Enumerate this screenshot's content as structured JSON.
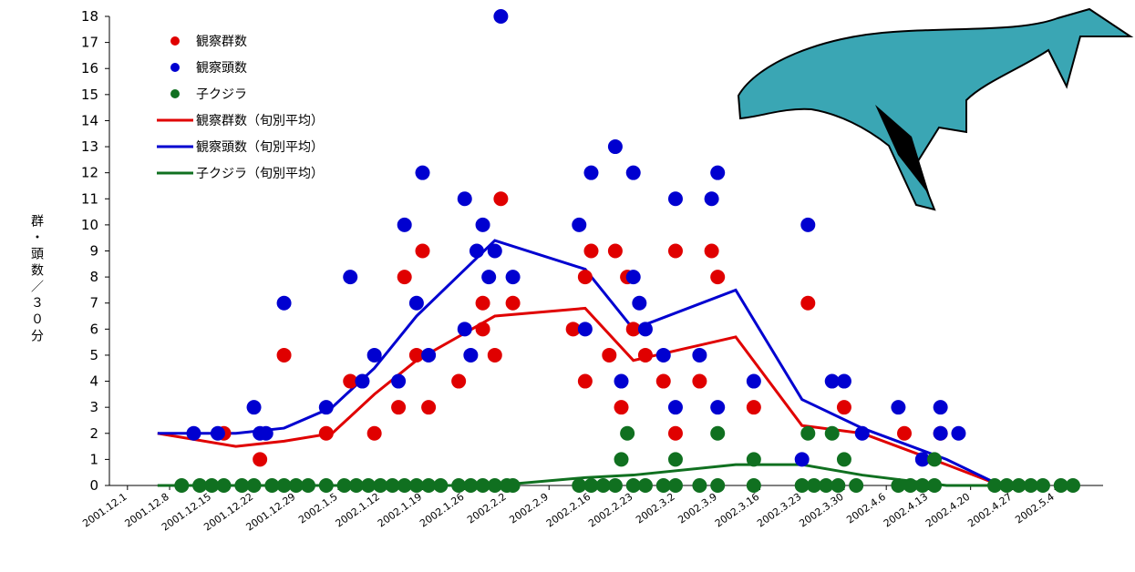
{
  "chart_data": {
    "type": "scatter",
    "y_label": "群・頭数／３０分",
    "xlim": [
      -3,
      162
    ],
    "ylim": [
      0,
      18
    ],
    "xticks": [
      {
        "value": 0,
        "label": "2001.12.1"
      },
      {
        "value": 7,
        "label": "2001.12.8"
      },
      {
        "value": 14,
        "label": "2001.12.15"
      },
      {
        "value": 21,
        "label": "2001.12.22"
      },
      {
        "value": 28,
        "label": "2001.12.29"
      },
      {
        "value": 35,
        "label": "2002.1.5"
      },
      {
        "value": 42,
        "label": "2002.1.12"
      },
      {
        "value": 49,
        "label": "2002.1.19"
      },
      {
        "value": 56,
        "label": "2002.1.26"
      },
      {
        "value": 63,
        "label": "2002.2.2"
      },
      {
        "value": 70,
        "label": "2002.2.9"
      },
      {
        "value": 77,
        "label": "2002.2.16"
      },
      {
        "value": 84,
        "label": "2002.2.23"
      },
      {
        "value": 91,
        "label": "2002.3.2"
      },
      {
        "value": 98,
        "label": "2002.3.9"
      },
      {
        "value": 105,
        "label": "2002.3.16"
      },
      {
        "value": 112,
        "label": "2002.3.23"
      },
      {
        "value": 119,
        "label": "2002.3.30"
      },
      {
        "value": 126,
        "label": "2002.4.6"
      },
      {
        "value": 133,
        "label": "2002.4.13"
      },
      {
        "value": 140,
        "label": "2002.4.20"
      },
      {
        "value": 147,
        "label": "2002.4.27"
      },
      {
        "value": 154,
        "label": "2002.5.4"
      }
    ],
    "yticks": [
      0,
      1,
      2,
      3,
      4,
      5,
      6,
      7,
      8,
      9,
      10,
      11,
      12,
      13,
      14,
      15,
      16,
      17,
      18
    ],
    "series": [
      {
        "name": "観察群数",
        "color": "#e00000",
        "kind": "scatter",
        "x": [
          16,
          22,
          26,
          33,
          37,
          41,
          45,
          46,
          49,
          50,
          48,
          55,
          59,
          59,
          61,
          62,
          64,
          74,
          76,
          76,
          77,
          80,
          81,
          82,
          83,
          84,
          86,
          89,
          91,
          91,
          95,
          97,
          98,
          104,
          113,
          119,
          129,
          135
        ],
        "values": [
          2,
          1,
          5,
          2,
          4,
          2,
          3,
          8,
          9,
          3,
          5,
          4,
          7,
          6,
          5,
          11,
          7,
          6,
          4,
          8,
          9,
          5,
          9,
          3,
          8,
          6,
          5,
          4,
          9,
          2,
          4,
          9,
          8,
          3,
          7,
          3,
          2,
          2
        ]
      },
      {
        "name": "観察頭数",
        "color": "#0000d0",
        "kind": "scatter",
        "x": [
          11,
          15,
          21,
          22,
          23,
          26,
          33,
          37,
          39,
          41,
          46,
          45,
          49,
          48,
          50,
          56,
          56,
          57,
          58,
          59,
          60,
          61,
          62,
          64,
          75,
          76,
          77,
          81,
          82,
          84,
          84,
          85,
          86,
          89,
          91,
          91,
          95,
          97,
          98,
          98,
          104,
          113,
          112,
          117,
          119,
          122,
          128,
          132,
          135,
          135,
          138
        ],
        "values": [
          2,
          2,
          3,
          2,
          2,
          7,
          3,
          8,
          4,
          5,
          10,
          4,
          12,
          7,
          5,
          6,
          11,
          5,
          9,
          10,
          8,
          9,
          18,
          8,
          10,
          6,
          12,
          13,
          4,
          12,
          8,
          7,
          6,
          5,
          11,
          3,
          5,
          11,
          3,
          12,
          4,
          10,
          1,
          4,
          4,
          2,
          3,
          1,
          3,
          2,
          2
        ]
      },
      {
        "name": "子クジラ",
        "color": "#107020",
        "kind": "scatter",
        "x": [
          9,
          12,
          14,
          16,
          19,
          21,
          24,
          26,
          28,
          30,
          33,
          36,
          38,
          40,
          42,
          44,
          46,
          48,
          50,
          52,
          55,
          57,
          59,
          61,
          63,
          64,
          75,
          77,
          79,
          81,
          84,
          86,
          89,
          91,
          95,
          98,
          104,
          112,
          114,
          116,
          118,
          121,
          128,
          130,
          132,
          134,
          144,
          146,
          148,
          150,
          152,
          155,
          157,
          83,
          82,
          91,
          98,
          104,
          113,
          117,
          119,
          134
        ],
        "values": [
          0,
          0,
          0,
          0,
          0,
          0,
          0,
          0,
          0,
          0,
          0,
          0,
          0,
          0,
          0,
          0,
          0,
          0,
          0,
          0,
          0,
          0,
          0,
          0,
          0,
          0,
          0,
          0,
          0,
          0,
          0,
          0,
          0,
          0,
          0,
          0,
          0,
          0,
          0,
          0,
          0,
          0,
          0,
          0,
          0,
          0,
          0,
          0,
          0,
          0,
          0,
          0,
          0,
          2,
          1,
          1,
          2,
          1,
          2,
          2,
          1,
          1
        ]
      },
      {
        "name": "観察群数（旬別平均）",
        "color": "#e00000",
        "kind": "line",
        "x": [
          5,
          18,
          26,
          34,
          41,
          48,
          61,
          76,
          84,
          101,
          112,
          122,
          136,
          145
        ],
        "values": [
          2,
          1.5,
          1.7,
          2,
          3.5,
          4.8,
          6.5,
          6.8,
          4.8,
          5.7,
          2.3,
          2,
          0.8,
          0
        ]
      },
      {
        "name": "観察頭数（旬別平均）",
        "color": "#0000d0",
        "kind": "line",
        "x": [
          5,
          18,
          26,
          34,
          41,
          48,
          61,
          76,
          84,
          101,
          112,
          122,
          136,
          145
        ],
        "values": [
          2,
          2,
          2.2,
          3,
          4.5,
          6.5,
          9.4,
          8.3,
          6,
          7.5,
          3.3,
          2.2,
          1,
          0
        ]
      },
      {
        "name": "子クジラ（旬別平均）",
        "color": "#107020",
        "kind": "line",
        "x": [
          5,
          18,
          26,
          34,
          41,
          48,
          61,
          76,
          84,
          101,
          112,
          122,
          136,
          145
        ],
        "values": [
          0,
          0,
          0,
          0,
          0,
          0,
          0,
          0.3,
          0.4,
          0.8,
          0.8,
          0.4,
          0,
          0
        ]
      }
    ]
  }
}
